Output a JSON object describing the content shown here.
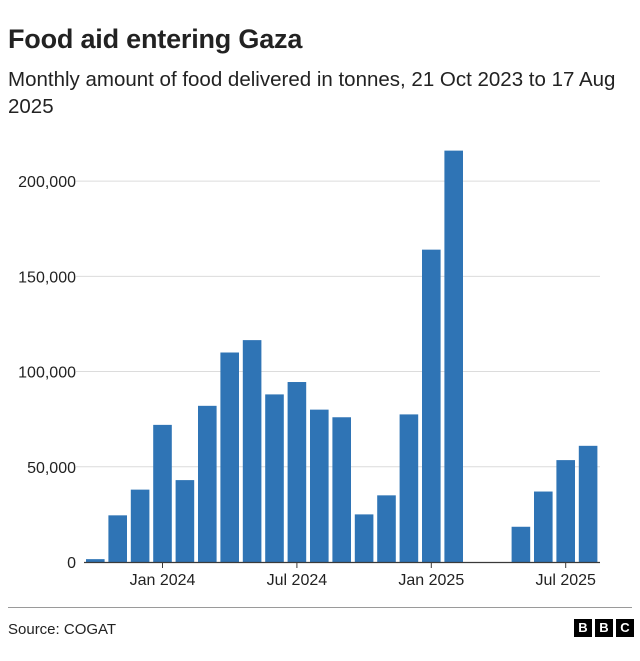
{
  "header": {
    "title": "Food aid entering Gaza",
    "subtitle": "Monthly amount of food delivered in tonnes, 21 Oct 2023 to 17 Aug 2025"
  },
  "footer": {
    "source": "Source: COGAT",
    "logo_letters": [
      "B",
      "B",
      "C"
    ]
  },
  "colors": {
    "bar": "#2f74b5",
    "grid": "#dcdcdc",
    "axis": "#3a3a3a",
    "text": "#222222"
  },
  "chart_data": {
    "type": "bar",
    "title": "Food aid entering Gaza",
    "subtitle": "Monthly amount of food delivered in tonnes, 21 Oct 2023 to 17 Aug 2025",
    "xlabel": "",
    "ylabel": "",
    "categories": [
      "Oct 2023",
      "Nov 2023",
      "Dec 2023",
      "Jan 2024",
      "Feb 2024",
      "Mar 2024",
      "Apr 2024",
      "May 2024",
      "Jun 2024",
      "Jul 2024",
      "Aug 2024",
      "Sep 2024",
      "Oct 2024",
      "Nov 2024",
      "Dec 2024",
      "Jan 2025",
      "Feb 2025",
      "Mar 2025",
      "Apr 2025",
      "May 2025",
      "Jun 2025",
      "Jul 2025",
      "Aug 2025"
    ],
    "values": [
      1500,
      24500,
      38000,
      72000,
      43000,
      82000,
      110000,
      116500,
      88000,
      94500,
      80000,
      76000,
      25000,
      35000,
      77500,
      164000,
      216000,
      0,
      0,
      18500,
      37000,
      53500,
      61000
    ],
    "ylim": [
      0,
      220000
    ],
    "yticks": [
      0,
      50000,
      100000,
      150000,
      200000
    ],
    "ytick_labels": [
      "0",
      "50,000",
      "100,000",
      "150,000",
      "200,000"
    ],
    "xtick_labels": [
      {
        "category": "Jan 2024",
        "label": "Jan 2024"
      },
      {
        "category": "Jul 2024",
        "label": "Jul 2024"
      },
      {
        "category": "Jan 2025",
        "label": "Jan 2025"
      },
      {
        "category": "Jul 2025",
        "label": "Jul 2025"
      }
    ],
    "grid": true,
    "legend": "none"
  }
}
